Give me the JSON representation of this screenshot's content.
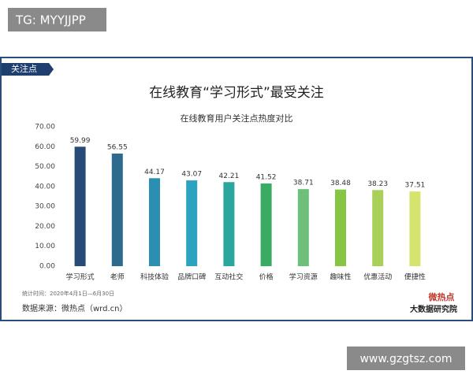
{
  "watermark_top": "TG: MYYJJPP",
  "watermark_bottom": "www.gzgtsz.com",
  "chart_data": {
    "type": "bar",
    "tag": "关注点",
    "title": "在线教育“学习形式”最受关注",
    "subtitle": "在线教育用户关注点热度对比",
    "categories": [
      "学习形式",
      "老师",
      "科技体验",
      "品牌口碑",
      "互动社交",
      "价格",
      "学习资源",
      "趣味性",
      "优惠活动",
      "便捷性"
    ],
    "values": [
      59.99,
      56.55,
      44.17,
      43.07,
      42.21,
      41.52,
      38.71,
      38.48,
      38.23,
      37.51
    ],
    "colors": [
      "#274b78",
      "#2d6a8d",
      "#2a8fb3",
      "#2aa2c0",
      "#2ba69f",
      "#3aab62",
      "#6ebf7a",
      "#86c445",
      "#a9d058",
      "#d6e36e"
    ],
    "ylim": [
      0,
      70
    ],
    "yticks": [
      {
        "value": 0,
        "label": "0.00"
      },
      {
        "value": 10,
        "label": "10.00"
      },
      {
        "value": 20,
        "label": "20.00"
      },
      {
        "value": 30,
        "label": "30.00"
      },
      {
        "value": 40,
        "label": "40.00"
      },
      {
        "value": 50,
        "label": "50.00"
      },
      {
        "value": 60,
        "label": "60.00"
      },
      {
        "value": 70,
        "label": "70.00"
      }
    ],
    "grid": false,
    "footnote": "统计时间：2020年4月1日—6月30日",
    "source": "数据来源：微热点（wrd.cn）",
    "logo": [
      "微热点",
      "大数据研究院"
    ]
  }
}
